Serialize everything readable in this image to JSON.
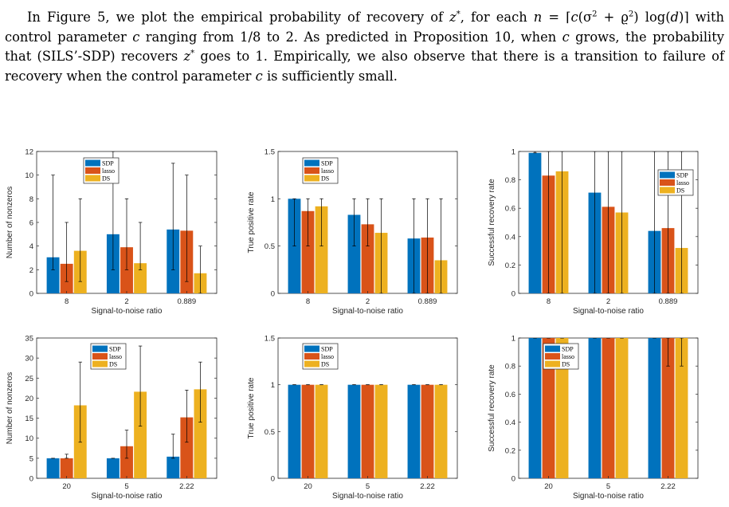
{
  "paragraph": {
    "text_a": "In Figure 5, we plot the empirical probability of recovery of ",
    "z_star": "z",
    "text_b": ", for each ",
    "n_var": "n",
    "text_c": " = ⌈",
    "c_var": "c",
    "text_d": "(σ",
    "sq1": "2",
    "text_e": " + ϱ",
    "sq2": "2",
    "text_f": ") log(",
    "d_var": "d",
    "text_g": ")⌉ with control parameter ",
    "c_var2": "c",
    "text_h": " ranging from 1/8 to 2. As predicted in Proposition 10, when ",
    "c_var3": "c",
    "text_i": " grows, the probability that (SILS’-SDP) recovers ",
    "z_star2": "z",
    "text_j": " goes to 1. Empirically, we also observe that there is a transition to failure of recovery when the control parameter ",
    "c_var4": "c",
    "text_k": " is sufficiently small.",
    "star": "*"
  },
  "colors": {
    "SDP": "#0072BD",
    "lasso": "#D95319",
    "DS": "#EDB120"
  },
  "chart_data": [
    {
      "type": "bar",
      "xlabel": "Signal-to-noise ratio",
      "ylabel": "Number of nonzeros",
      "categories": [
        "8",
        "2",
        "0.889"
      ],
      "ylim": [
        0,
        12
      ],
      "yticks": [
        0,
        2,
        4,
        6,
        8,
        10,
        12
      ],
      "legend": "top-left",
      "series": [
        {
          "name": "SDP",
          "values": [
            3.05,
            5.0,
            5.4
          ],
          "err_low": [
            2,
            2,
            2
          ],
          "err_high": [
            10,
            12,
            11
          ]
        },
        {
          "name": "lasso",
          "values": [
            2.5,
            3.9,
            5.3
          ],
          "err_low": [
            1,
            2,
            1
          ],
          "err_high": [
            6,
            8,
            10
          ]
        },
        {
          "name": "DS",
          "values": [
            3.6,
            2.55,
            1.7
          ],
          "err_low": [
            1,
            2,
            0
          ],
          "err_high": [
            8,
            6,
            4
          ]
        }
      ]
    },
    {
      "type": "bar",
      "xlabel": "Signal-to-noise ratio",
      "ylabel": "True positive rate",
      "categories": [
        "8",
        "2",
        "0.889"
      ],
      "ylim": [
        0,
        1.5
      ],
      "yticks": [
        0,
        0.5,
        1,
        1.5
      ],
      "legend": "top-left",
      "series": [
        {
          "name": "SDP",
          "values": [
            1.0,
            0.83,
            0.58
          ],
          "err_low": [
            0.5,
            0.5,
            0
          ],
          "err_high": [
            1,
            1,
            1
          ]
        },
        {
          "name": "lasso",
          "values": [
            0.87,
            0.73,
            0.59
          ],
          "err_low": [
            0.5,
            0.5,
            0
          ],
          "err_high": [
            1,
            1,
            1
          ]
        },
        {
          "name": "DS",
          "values": [
            0.92,
            0.64,
            0.35
          ],
          "err_low": [
            0.5,
            0,
            0
          ],
          "err_high": [
            1,
            1,
            1
          ]
        }
      ]
    },
    {
      "type": "bar",
      "xlabel": "Signal-to-noise ratio",
      "ylabel": "Successful recovery rate",
      "categories": [
        "8",
        "2",
        "0.889"
      ],
      "ylim": [
        0,
        1
      ],
      "yticks": [
        0,
        0.2,
        0.4,
        0.6,
        0.8,
        1
      ],
      "legend": "top-right",
      "series": [
        {
          "name": "SDP",
          "values": [
            0.99,
            0.71,
            0.44
          ],
          "err_low": [
            0.99,
            0,
            0
          ],
          "err_high": [
            1,
            1,
            1
          ]
        },
        {
          "name": "lasso",
          "values": [
            0.83,
            0.61,
            0.46
          ],
          "err_low": [
            0,
            0,
            0
          ],
          "err_high": [
            1,
            1,
            1
          ]
        },
        {
          "name": "DS",
          "values": [
            0.86,
            0.57,
            0.32
          ],
          "err_low": [
            0,
            0,
            0
          ],
          "err_high": [
            1,
            1,
            1
          ]
        }
      ]
    },
    {
      "type": "bar",
      "xlabel": "Signal-to-noise ratio",
      "ylabel": "Number of nonzeros",
      "categories": [
        "20",
        "5",
        "2.22"
      ],
      "ylim": [
        0,
        35
      ],
      "yticks": [
        0,
        5,
        10,
        15,
        20,
        25,
        30,
        35
      ],
      "legend": "top-left",
      "series": [
        {
          "name": "SDP",
          "values": [
            5.0,
            5.0,
            5.4
          ],
          "err_low": [
            5,
            5,
            5
          ],
          "err_high": [
            5,
            5,
            11
          ]
        },
        {
          "name": "lasso",
          "values": [
            5.0,
            8.0,
            15.2
          ],
          "err_low": [
            5,
            5,
            9
          ],
          "err_high": [
            6,
            12,
            22
          ]
        },
        {
          "name": "DS",
          "values": [
            18.2,
            21.6,
            22.2
          ],
          "err_low": [
            9,
            13,
            14
          ],
          "err_high": [
            29,
            33,
            29
          ]
        }
      ]
    },
    {
      "type": "bar",
      "xlabel": "Signal-to-noise ratio",
      "ylabel": "True positive rate",
      "categories": [
        "20",
        "5",
        "2.22"
      ],
      "ylim": [
        0,
        1.5
      ],
      "yticks": [
        0,
        0.5,
        1,
        1.5
      ],
      "legend": "top-left",
      "series": [
        {
          "name": "SDP",
          "values": [
            1,
            1,
            1
          ],
          "err_low": [
            1,
            1,
            1
          ],
          "err_high": [
            1,
            1,
            1
          ]
        },
        {
          "name": "lasso",
          "values": [
            1,
            1,
            1
          ],
          "err_low": [
            1,
            1,
            1
          ],
          "err_high": [
            1,
            1,
            1
          ]
        },
        {
          "name": "DS",
          "values": [
            1,
            1,
            1
          ],
          "err_low": [
            1,
            1,
            1
          ],
          "err_high": [
            1,
            1,
            1
          ]
        }
      ]
    },
    {
      "type": "bar",
      "xlabel": "Signal-to-noise ratio",
      "ylabel": "Successful recovery rate",
      "categories": [
        "20",
        "5",
        "2.22"
      ],
      "ylim": [
        0,
        1
      ],
      "yticks": [
        0,
        0.2,
        0.4,
        0.6,
        0.8,
        1
      ],
      "legend": "top-left",
      "series": [
        {
          "name": "SDP",
          "values": [
            1,
            1,
            1
          ],
          "err_low": [
            1,
            1,
            1
          ],
          "err_high": [
            1,
            1,
            1
          ]
        },
        {
          "name": "lasso",
          "values": [
            1,
            1,
            1
          ],
          "err_low": [
            1,
            1,
            0.8
          ],
          "err_high": [
            1,
            1,
            1
          ]
        },
        {
          "name": "DS",
          "values": [
            1,
            1,
            1
          ],
          "err_low": [
            1,
            1,
            0.8
          ],
          "err_high": [
            1,
            1,
            1
          ]
        }
      ]
    }
  ]
}
